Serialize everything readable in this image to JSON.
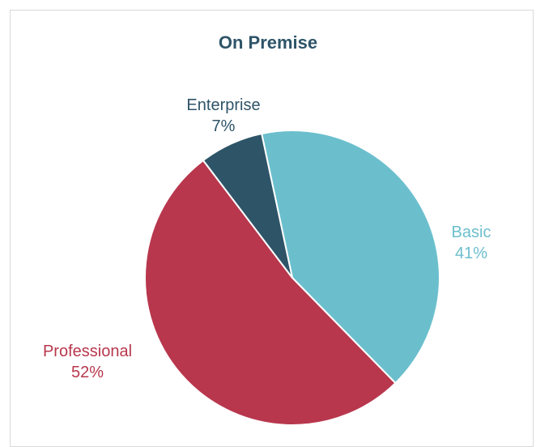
{
  "chart_data": {
    "type": "pie",
    "title": "On Premise",
    "slices": [
      {
        "name": "Basic",
        "value": 41,
        "label": "41%",
        "color": "#6BBFCD"
      },
      {
        "name": "Professional",
        "value": 52,
        "label": "52%",
        "color": "#B8374D"
      },
      {
        "name": "Enterprise",
        "value": 7,
        "label": "7%",
        "color": "#2E5468"
      }
    ],
    "title_color": "#2E5468",
    "legend": "none"
  }
}
